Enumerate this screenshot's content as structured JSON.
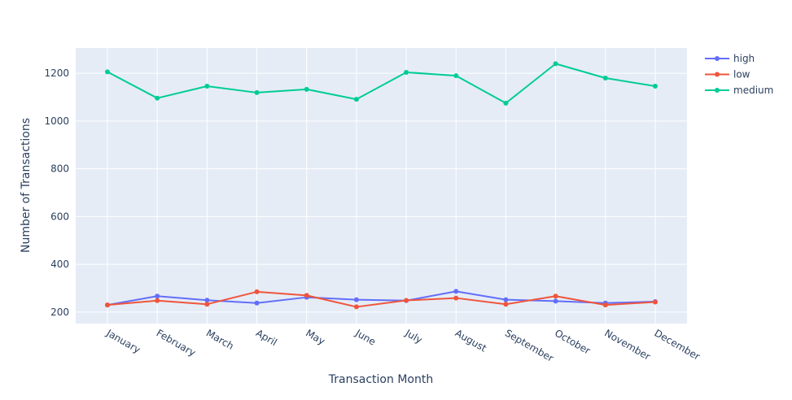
{
  "chart_data": {
    "type": "line",
    "xlabel": "Transaction Month",
    "ylabel": "Number of Transactions",
    "categories": [
      "January",
      "February",
      "March",
      "April",
      "May",
      "June",
      "July",
      "August",
      "September",
      "October",
      "November",
      "December"
    ],
    "ylim": [
      152,
      1306
    ],
    "yticks": [
      200,
      400,
      600,
      800,
      1000,
      1200
    ],
    "y_tick_labels": [
      "200",
      "400",
      "600",
      "800",
      "1000",
      "1200"
    ],
    "grid": true,
    "legend_position": "top-right",
    "series": [
      {
        "name": "high",
        "color": "#636efa",
        "values": [
          230,
          267,
          250,
          238,
          262,
          252,
          248,
          287,
          252,
          246,
          238,
          244
        ]
      },
      {
        "name": "low",
        "color": "#ef553b",
        "values": [
          230,
          248,
          233,
          285,
          270,
          222,
          249,
          259,
          233,
          267,
          230,
          242
        ]
      },
      {
        "name": "medium",
        "color": "#00cc96",
        "values": [
          1206,
          1096,
          1146,
          1119,
          1133,
          1091,
          1204,
          1190,
          1075,
          1240,
          1180,
          1146
        ]
      }
    ]
  }
}
